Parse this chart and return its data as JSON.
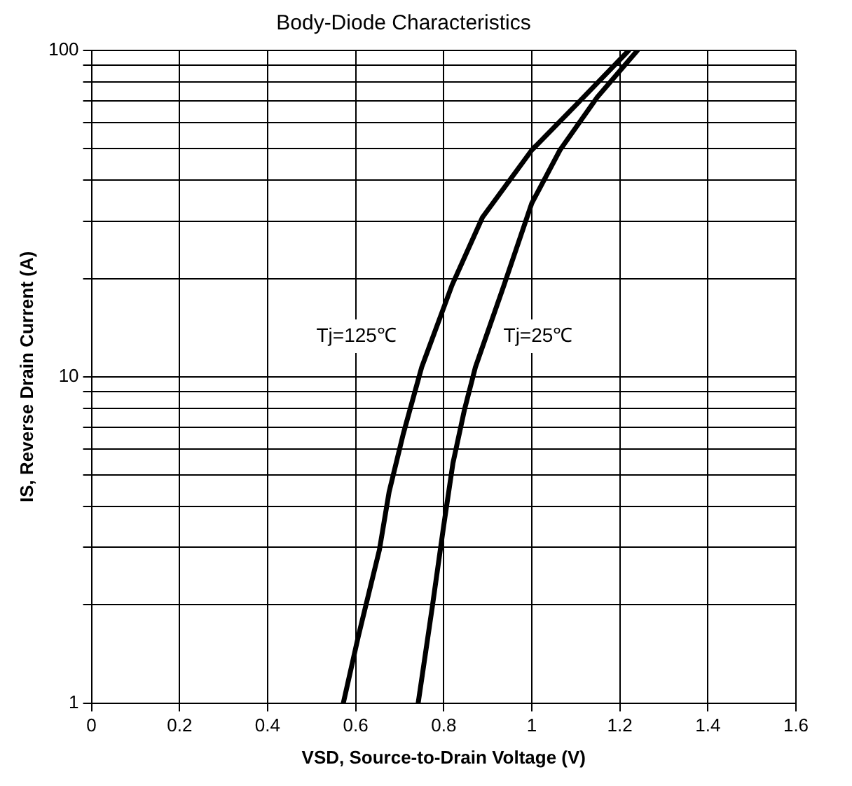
{
  "chart_data": {
    "type": "line",
    "title": "Body-Diode Characteristics",
    "xlabel": "VSD, Source-to-Drain Voltage (V)",
    "ylabel": "IS, Reverse Drain Current (A)",
    "xlim": [
      0,
      1.6
    ],
    "xticks": [
      0,
      0.2,
      0.4,
      0.6,
      0.8,
      1,
      1.2,
      1.4,
      1.6
    ],
    "ylim": [
      1,
      100
    ],
    "yticks": [
      1,
      {
        "value": 2,
        "label": null
      },
      {
        "value": 3,
        "label": null
      },
      {
        "value": 4,
        "label": null
      },
      {
        "value": 5,
        "label": null
      },
      {
        "value": 6,
        "label": null
      },
      {
        "value": 7,
        "label": null
      },
      {
        "value": 8,
        "label": null
      },
      {
        "value": 9,
        "label": null
      },
      10,
      {
        "value": 20,
        "label": null
      },
      {
        "value": 30,
        "label": null
      },
      {
        "value": 40,
        "label": null
      },
      {
        "value": 50,
        "label": null
      },
      {
        "value": 60,
        "label": null
      },
      {
        "value": 70,
        "label": null
      },
      {
        "value": 80,
        "label": null
      },
      {
        "value": 90,
        "label": null
      },
      100
    ],
    "log": "y",
    "grid": true,
    "legend": false,
    "marker": "none",
    "line_style": "solid",
    "series": [
      {
        "name": "Tj=125℃",
        "color": "#000000",
        "x": [
          0.572,
          0.606,
          0.654,
          0.676,
          0.708,
          0.734,
          0.75,
          0.819,
          0.888,
          1.0,
          1.107,
          1.213,
          1.22
        ],
        "values": [
          1,
          1.6,
          2.95,
          4.44,
          6.67,
          8.94,
          10.7,
          19.1,
          30.8,
          49.5,
          69.5,
          97.7,
          100
        ]
      },
      {
        "name": "Tj=25℃",
        "color": "#000000",
        "x": [
          0.742,
          0.774,
          0.8,
          0.821,
          0.847,
          0.872,
          0.937,
          1.0,
          1.064,
          1.149,
          1.24
        ],
        "values": [
          1,
          1.97,
          3.5,
          5.44,
          7.91,
          10.7,
          19.1,
          34.0,
          49.5,
          72,
          100
        ]
      }
    ]
  }
}
